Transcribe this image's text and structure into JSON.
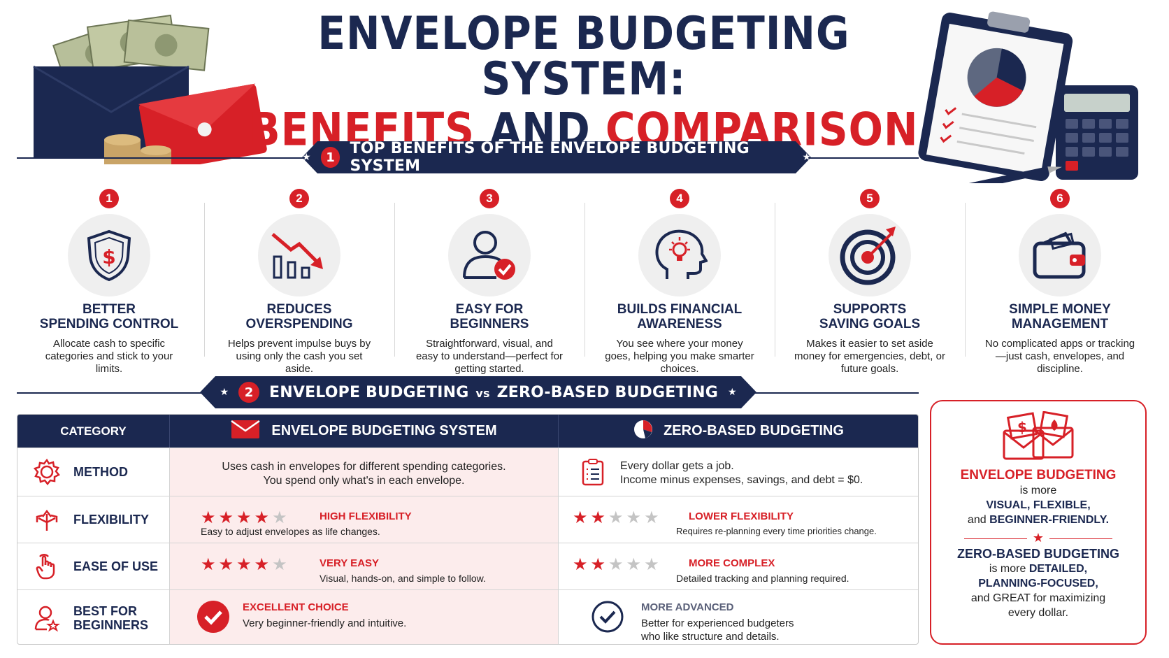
{
  "title": {
    "line1": "ENVELOPE BUDGETING SYSTEM:",
    "line2_part1": "BENEFITS",
    "line2_part2": "AND",
    "line2_part3": "COMPARISON"
  },
  "section1": {
    "number": "1",
    "title": "TOP BENEFITS OF THE ENVELOPE BUDGETING SYSTEM"
  },
  "benefits": [
    {
      "number": "1",
      "icon": "shield-dollar-icon",
      "title_l1": "BETTER",
      "title_l2": "SPENDING CONTROL",
      "desc": "Allocate cash to specific categories and stick to your limits."
    },
    {
      "number": "2",
      "icon": "decreasing-chart-icon",
      "title_l1": "REDUCES",
      "title_l2": "OVERSPENDING",
      "desc": "Helps prevent impulse buys by using only the cash you set aside."
    },
    {
      "number": "3",
      "icon": "user-check-icon",
      "title_l1": "EASY FOR",
      "title_l2": "BEGINNERS",
      "desc": "Straightforward, visual, and easy to understand—perfect for getting started."
    },
    {
      "number": "4",
      "icon": "head-lightbulb-icon",
      "title_l1": "BUILDS FINANCIAL",
      "title_l2": "AWARENESS",
      "desc": "You see where your money goes, helping you make smarter choices."
    },
    {
      "number": "5",
      "icon": "target-arrow-icon",
      "title_l1": "SUPPORTS",
      "title_l2": "SAVING GOALS",
      "desc": "Makes it easier to set aside money for emergencies, debt, or future goals."
    },
    {
      "number": "6",
      "icon": "wallet-icon",
      "title_l1": "SIMPLE MONEY",
      "title_l2": "MANAGEMENT",
      "desc": "No complicated apps or tracking—just cash, envelopes, and discipline."
    }
  ],
  "section2": {
    "number": "2",
    "title_a": "ENVELOPE BUDGETING",
    "vs": "vs",
    "title_b": "ZERO-BASED BUDGETING"
  },
  "table": {
    "header": {
      "category": "CATEGORY",
      "envelope": "ENVELOPE BUDGETING SYSTEM",
      "zero": "ZERO-BASED BUDGETING"
    },
    "method": {
      "label": "METHOD",
      "envelope_l1": "Uses cash in envelopes for different spending categories.",
      "envelope_l2": "You spend only what's in each envelope.",
      "zero_l1": "Every dollar gets a job.",
      "zero_l2": "Income minus expenses, savings, and debt = $0."
    },
    "flexibility": {
      "label": "FLEXIBILITY",
      "envelope_stars": 4,
      "envelope_rating": "HIGH FLEXIBILITY",
      "envelope_desc": "Easy to adjust envelopes as life changes.",
      "zero_stars": 2,
      "zero_rating": "LOWER FLEXIBILITY",
      "zero_desc": "Requires re-planning every time priorities change."
    },
    "ease": {
      "label": "EASE OF USE",
      "envelope_stars": 4,
      "envelope_rating": "VERY EASY",
      "envelope_desc": "Visual, hands-on, and simple to follow.",
      "zero_stars": 2,
      "zero_rating": "MORE COMPLEX",
      "zero_desc": "Detailed tracking and planning required."
    },
    "beginners": {
      "label_l1": "BEST FOR",
      "label_l2": "BEGINNERS",
      "envelope_title": "EXCELLENT CHOICE",
      "envelope_desc": "Very beginner-friendly and intuitive.",
      "zero_title": "MORE ADVANCED",
      "zero_desc_l1": "Better for experienced budgeters",
      "zero_desc_l2": "who like structure and details."
    }
  },
  "summary": {
    "title1": "ENVELOPE BUDGETING",
    "line1": "is more",
    "bold1": "VISUAL, FLEXIBLE,",
    "and1": "and",
    "bold1b": "BEGINNER-FRIENDLY.",
    "title2": "ZERO-BASED BUDGETING",
    "line2": "is more",
    "bold2a": "DETAILED,",
    "bold2b": "PLANNING-FOCUSED,",
    "line2c": "and GREAT for maximizing",
    "line2d": "every dollar."
  },
  "colors": {
    "navy": "#1b2850",
    "red": "#d72027",
    "light_pink": "#fcecec",
    "gray_circle": "#efefef"
  }
}
